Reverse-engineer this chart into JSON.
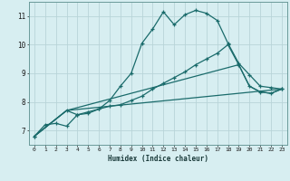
{
  "xlabel": "Humidex (Indice chaleur)",
  "bg_color": "#d7eef1",
  "grid_color": "#b8d4d8",
  "line_color": "#1a6b6b",
  "xlim": [
    -0.5,
    23.5
  ],
  "ylim": [
    6.5,
    11.5
  ],
  "xticks": [
    0,
    1,
    2,
    3,
    4,
    5,
    6,
    7,
    8,
    9,
    10,
    11,
    12,
    13,
    14,
    15,
    16,
    17,
    18,
    19,
    20,
    21,
    22,
    23
  ],
  "yticks": [
    7,
    8,
    9,
    10,
    11
  ],
  "line1_x": [
    0,
    1,
    2,
    3,
    4,
    5,
    6,
    7,
    8,
    9,
    10,
    11,
    12,
    13,
    14,
    15,
    16,
    17,
    18,
    19,
    20,
    21,
    22,
    23
  ],
  "line1_y": [
    6.8,
    7.2,
    7.25,
    7.15,
    7.55,
    7.65,
    7.75,
    8.05,
    8.55,
    9.0,
    10.05,
    10.55,
    11.15,
    10.7,
    11.05,
    11.2,
    11.1,
    10.85,
    10.05,
    9.35,
    8.95,
    8.55,
    8.5,
    8.45
  ],
  "line2_x": [
    0,
    3,
    4,
    5,
    6,
    7,
    8,
    9,
    10,
    11,
    12,
    13,
    14,
    15,
    16,
    17,
    18,
    19,
    20,
    21,
    22,
    23
  ],
  "line2_y": [
    6.8,
    7.7,
    7.55,
    7.6,
    7.75,
    7.85,
    7.9,
    8.05,
    8.2,
    8.45,
    8.65,
    8.85,
    9.05,
    9.3,
    9.5,
    9.7,
    10.0,
    9.3,
    8.55,
    8.35,
    8.3,
    8.45
  ],
  "line3_x": [
    0,
    3,
    23
  ],
  "line3_y": [
    6.8,
    7.7,
    8.45
  ],
  "line4_x": [
    0,
    3,
    19,
    20,
    21,
    22,
    23
  ],
  "line4_y": [
    6.8,
    7.7,
    9.3,
    8.55,
    8.35,
    8.3,
    8.45
  ]
}
